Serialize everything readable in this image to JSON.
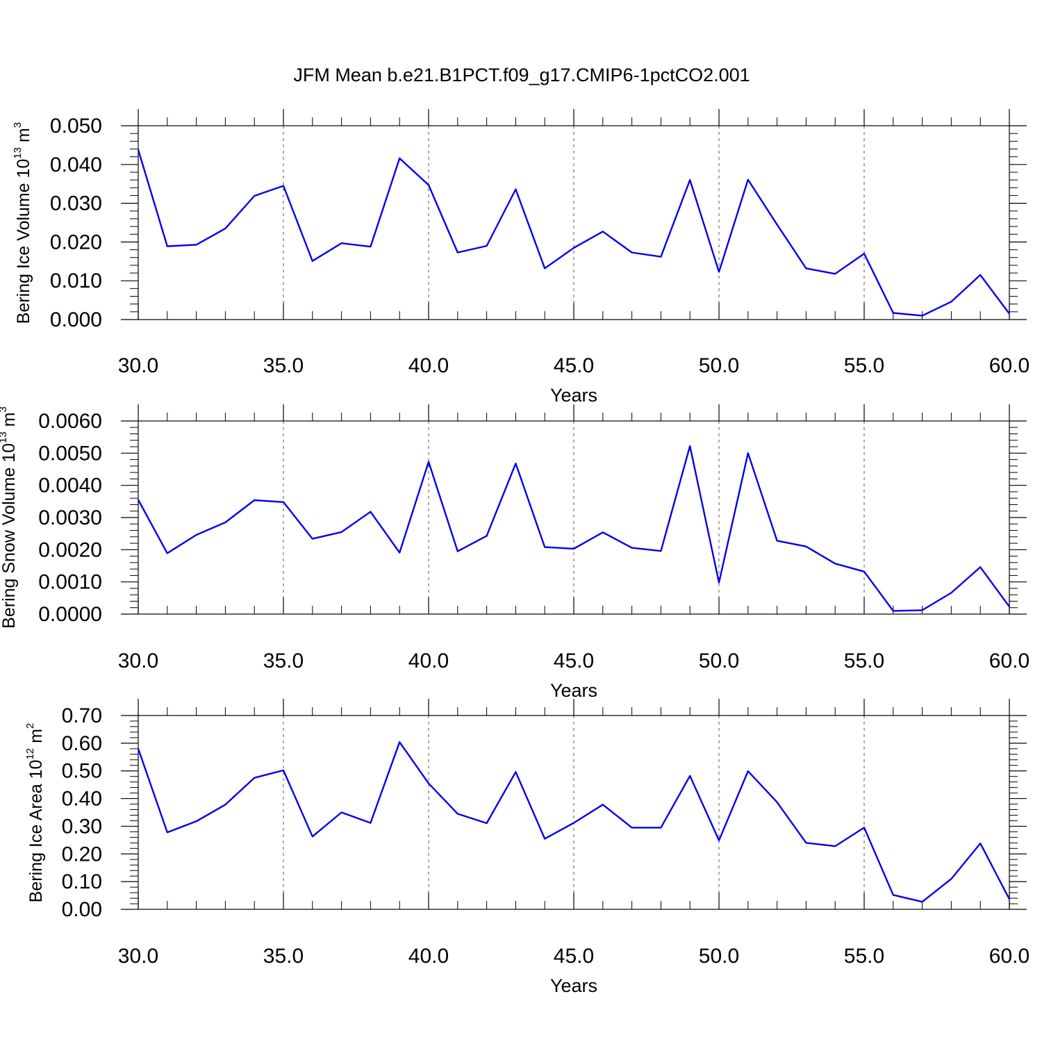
{
  "title": "JFM Mean b.e21.B1PCT.f09_g17.CMIP6-1pctCO2.001",
  "colors": {
    "line": "#0000ee",
    "axis": "#000000",
    "grid": "#555555"
  },
  "chart_data": [
    {
      "type": "line",
      "ylabel": {
        "text": "Bering Ice Volume 10",
        "exponent": "13",
        "unit": "m",
        "unit_exponent": "3"
      },
      "xlabel": "Years",
      "xlim": [
        30,
        60
      ],
      "ylim": [
        0.0,
        0.05
      ],
      "x_ticks": [
        "30.0",
        "35.0",
        "40.0",
        "45.0",
        "50.0",
        "55.0",
        "60.0"
      ],
      "y_ticks": [
        "0.000",
        "0.010",
        "0.020",
        "0.030",
        "0.040",
        "0.050"
      ],
      "grid": "dashed vertical at major x ticks",
      "x": [
        30,
        31,
        32,
        33,
        34,
        35,
        36,
        37,
        38,
        39,
        40,
        41,
        42,
        43,
        44,
        45,
        46,
        47,
        48,
        49,
        50,
        51,
        52,
        53,
        54,
        55,
        56,
        57,
        58,
        59,
        60
      ],
      "values": [
        0.0438,
        0.0189,
        0.0193,
        0.0235,
        0.0319,
        0.0345,
        0.0151,
        0.0197,
        0.0188,
        0.0416,
        0.0347,
        0.0173,
        0.019,
        0.0336,
        0.0132,
        0.0185,
        0.0227,
        0.0173,
        0.0162,
        0.036,
        0.0123,
        0.0361,
        0.0245,
        0.0132,
        0.0118,
        0.017,
        0.0017,
        0.001,
        0.0046,
        0.0115,
        0.0015
      ]
    },
    {
      "type": "line",
      "ylabel": {
        "text": "Bering Snow Volume 10",
        "exponent": "13",
        "unit": "m",
        "unit_exponent": "3"
      },
      "xlabel": "Years",
      "xlim": [
        30,
        60
      ],
      "ylim": [
        0.0,
        0.006
      ],
      "x_ticks": [
        "30.0",
        "35.0",
        "40.0",
        "45.0",
        "50.0",
        "55.0",
        "60.0"
      ],
      "y_ticks": [
        "0.0000",
        "0.0010",
        "0.0020",
        "0.0030",
        "0.0040",
        "0.0050",
        "0.0060"
      ],
      "grid": "dashed vertical at major x ticks",
      "x": [
        30,
        31,
        32,
        33,
        34,
        35,
        36,
        37,
        38,
        39,
        40,
        41,
        42,
        43,
        44,
        45,
        46,
        47,
        48,
        49,
        50,
        51,
        52,
        53,
        54,
        55,
        56,
        57,
        58,
        59,
        60
      ],
      "values": [
        0.00355,
        0.00189,
        0.00246,
        0.00285,
        0.00354,
        0.00348,
        0.00234,
        0.00255,
        0.00318,
        0.00191,
        0.00473,
        0.00195,
        0.00243,
        0.00468,
        0.00208,
        0.00203,
        0.00254,
        0.00206,
        0.00196,
        0.00522,
        0.00098,
        0.005,
        0.00228,
        0.0021,
        0.00157,
        0.00132,
        0.0001,
        0.00012,
        0.00066,
        0.00146,
        0.00023
      ]
    },
    {
      "type": "line",
      "ylabel": {
        "text": "Bering Ice Area 10",
        "exponent": "12",
        "unit": "m",
        "unit_exponent": "2"
      },
      "xlabel": "Years",
      "xlim": [
        30,
        60
      ],
      "ylim": [
        0.0,
        0.7
      ],
      "x_ticks": [
        "30.0",
        "35.0",
        "40.0",
        "45.0",
        "50.0",
        "55.0",
        "60.0"
      ],
      "y_ticks": [
        "0.00",
        "0.10",
        "0.20",
        "0.30",
        "0.40",
        "0.50",
        "0.60",
        "0.70"
      ],
      "grid": "dashed vertical at major x ticks",
      "x": [
        30,
        31,
        32,
        33,
        34,
        35,
        36,
        37,
        38,
        39,
        40,
        41,
        42,
        43,
        44,
        45,
        46,
        47,
        48,
        49,
        50,
        51,
        52,
        53,
        54,
        55,
        56,
        57,
        58,
        59,
        60
      ],
      "values": [
        0.58,
        0.278,
        0.318,
        0.378,
        0.475,
        0.502,
        0.263,
        0.35,
        0.312,
        0.604,
        0.455,
        0.345,
        0.311,
        0.496,
        0.255,
        0.312,
        0.378,
        0.295,
        0.295,
        0.482,
        0.249,
        0.499,
        0.387,
        0.24,
        0.228,
        0.295,
        0.052,
        0.027,
        0.11,
        0.238,
        0.037
      ]
    }
  ]
}
